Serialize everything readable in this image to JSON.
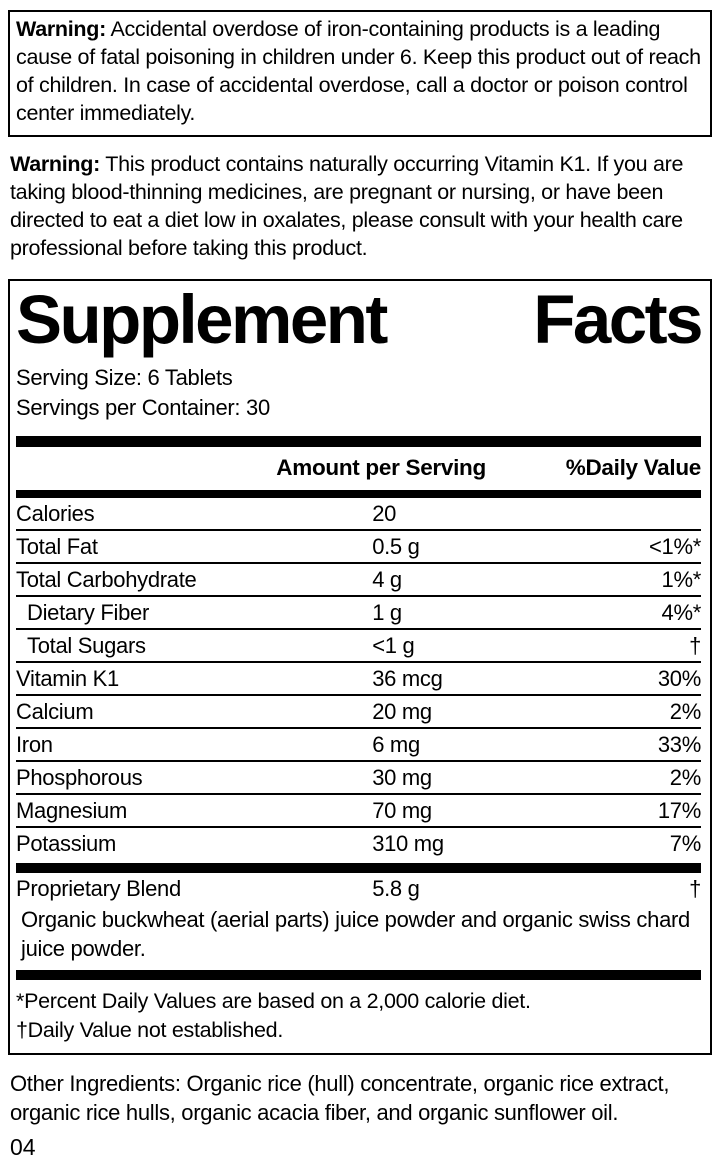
{
  "colors": {
    "text": "#000000",
    "background": "#ffffff",
    "rule": "#000000"
  },
  "warning_iron": {
    "label": "Warning:",
    "text": " Accidental overdose of iron-containing products is a leading cause of fatal poisoning in children under 6. Keep this product out of reach of children. In case of accidental overdose, call a doctor or poison control center immediately."
  },
  "warning_k1": {
    "label": "Warning:",
    "text": " This product contains naturally occurring Vitamin K1. If you are taking blood-thinning medicines, are pregnant or nursing, or have been directed to eat a diet low in oxalates, please consult with your health care professional before taking this product."
  },
  "supplement_facts": {
    "title_word1": "Supplement",
    "title_word2": "Facts",
    "serving_size": "Serving Size: 6 Tablets",
    "servings_per_container": "Servings per Container: 30",
    "col_amount": "Amount per Serving",
    "col_dv": "%Daily Value",
    "rows": [
      {
        "name": "Calories",
        "amount": "20",
        "dv": ""
      },
      {
        "name": "Total Fat",
        "amount": "0.5 g",
        "dv": "<1%*"
      },
      {
        "name": "Total Carbohydrate",
        "amount": "4 g",
        "dv": "1%*"
      },
      {
        "name": "Dietary Fiber",
        "amount": "1 g",
        "dv": "4%*"
      },
      {
        "name": "Total Sugars",
        "amount": "<1 g",
        "dv": "†"
      },
      {
        "name": "Vitamin K1",
        "amount": "36 mcg",
        "dv": "30%"
      },
      {
        "name": "Calcium",
        "amount": "20 mg",
        "dv": "2%"
      },
      {
        "name": "Iron",
        "amount": "6 mg",
        "dv": "33%"
      },
      {
        "name": "Phosphorous",
        "amount": "30 mg",
        "dv": "2%"
      },
      {
        "name": "Magnesium",
        "amount": "70 mg",
        "dv": "17%"
      },
      {
        "name": "Potassium",
        "amount": "310 mg",
        "dv": "7%"
      }
    ],
    "blend": {
      "name": "Proprietary Blend",
      "amount": "5.8 g",
      "dv": "†",
      "description": "Organic buckwheat (aerial parts) juice powder and organic swiss chard juice powder."
    },
    "footnote_percent": "*Percent Daily Values are based on a 2,000 calorie diet.",
    "footnote_dagger": "†Daily Value not established."
  },
  "other_ingredients": "Other Ingredients: Organic rice (hull) concentrate, organic rice extract, organic rice hulls, organic acacia fiber, and organic sunflower oil.",
  "page_number": "04"
}
